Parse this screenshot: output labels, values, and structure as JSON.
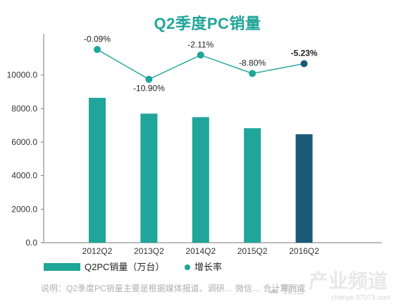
{
  "chart_data": {
    "type": "bar",
    "title": "Q2季度PC销量",
    "categories": [
      "2012Q2",
      "2013Q2",
      "2014Q2",
      "2015Q2",
      "2016Q2"
    ],
    "series": [
      {
        "name": "Q2PC销量（万台）",
        "type": "bar",
        "values": [
          8640,
          7700,
          7490,
          6830,
          6470
        ],
        "colors": [
          "#20a59a",
          "#20a59a",
          "#20a59a",
          "#20a59a",
          "#1d5a78"
        ]
      },
      {
        "name": "增长率",
        "type": "line",
        "values": [
          -0.09,
          -10.9,
          -2.11,
          -8.8,
          -5.23
        ],
        "labels": [
          "-0.09%",
          "-10.90%",
          "-2.11%",
          "-8.80%",
          "-5.23%"
        ],
        "color": "#20a59a"
      }
    ],
    "yticks": [
      "0.0",
      "2000.0",
      "4000.0",
      "6000.0",
      "8000.0",
      "10000.0"
    ],
    "ylim": [
      0,
      12000
    ],
    "legend_position": "bottom-left",
    "grid": false
  },
  "footnote": "说明：Q2季度PC销量主要是根据媒体报道、调研… 微信… 合计算而成",
  "watermark": "产业频道",
  "watermark_url": "chanye.07073.com"
}
